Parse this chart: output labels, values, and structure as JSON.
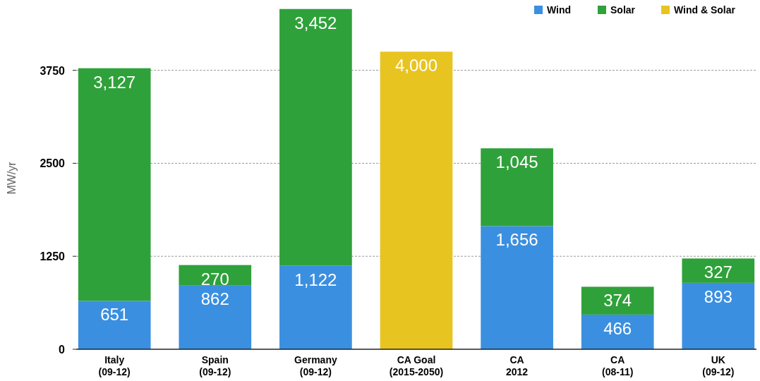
{
  "chart_data": {
    "type": "bar",
    "stacked": true,
    "ylabel": "MW/yr",
    "categories": [
      "Italy\n(09-12)",
      "Spain\n(09-12)",
      "Germany\n(09-12)",
      "CA Goal\n(2015-2050)",
      "CA\n2012",
      "CA\n(08-11)",
      "UK\n(09-12)"
    ],
    "series": [
      {
        "name": "Wind",
        "color": "#3b8fe0",
        "values": [
          651,
          862,
          1122,
          null,
          1656,
          466,
          893
        ],
        "value_labels": [
          "651",
          "862",
          "1,122",
          null,
          "1,656",
          "466",
          "893"
        ]
      },
      {
        "name": "Solar",
        "color": "#2fa13a",
        "values": [
          3127,
          270,
          3452,
          null,
          1045,
          374,
          327
        ],
        "value_labels": [
          "3,127",
          "270",
          "3,452",
          null,
          "1,045",
          "374",
          "327"
        ]
      },
      {
        "name": "Wind & Solar",
        "color": "#e8c420",
        "values": [
          null,
          null,
          null,
          4000,
          null,
          null,
          null
        ],
        "value_labels": [
          null,
          null,
          null,
          "4,000",
          null,
          null,
          null
        ]
      }
    ],
    "ylim": [
      0,
      4600
    ],
    "yticks": [
      0,
      1250,
      2500,
      3750
    ],
    "grid": "y",
    "legend": "top right"
  }
}
